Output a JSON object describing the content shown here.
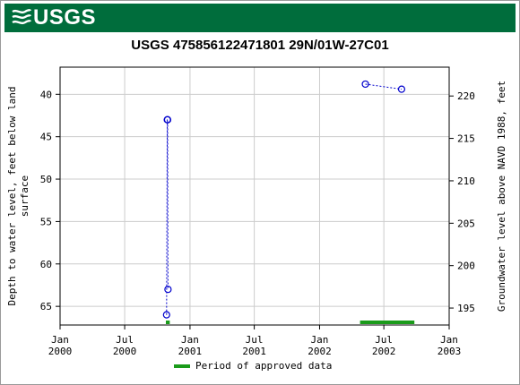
{
  "header": {
    "logo_text": "USGS",
    "logo_icon": "usgs-wave-icon",
    "background": "#006d3c"
  },
  "chart_data": {
    "type": "scatter",
    "title": "USGS 475856122471801 29N/01W-27C01",
    "ylabel": "Depth to water level, feet below land surface",
    "ylabel_lines": [
      "Depth to water level, feet below land",
      "surface"
    ],
    "y2label": "Groundwater level above NAVD 1988, feet",
    "xlim": [
      "2000-01-01",
      "2003-01-01"
    ],
    "ylim": [
      67.2,
      36.8
    ],
    "y_reversed": true,
    "y_ticks": [
      40,
      45,
      50,
      55,
      60,
      65
    ],
    "y2_ticks": [
      195,
      200,
      205,
      210,
      215,
      220
    ],
    "x_ticks": [
      {
        "date": "2000-01-01",
        "line1": "Jan",
        "line2": "2000"
      },
      {
        "date": "2000-07-01",
        "line1": "Jul",
        "line2": "2000"
      },
      {
        "date": "2001-01-01",
        "line1": "Jan",
        "line2": "2001"
      },
      {
        "date": "2001-07-01",
        "line1": "Jul",
        "line2": "2001"
      },
      {
        "date": "2002-01-01",
        "line1": "Jan",
        "line2": "2002"
      },
      {
        "date": "2002-07-01",
        "line1": "Jul",
        "line2": "2002"
      },
      {
        "date": "2003-01-01",
        "line1": "Jan",
        "line2": "2003"
      }
    ],
    "grid": true,
    "series": [
      {
        "color": "#0000cc",
        "segments": [
          [
            {
              "x": "2000-10-27",
              "y": 66.0
            },
            {
              "x": "2000-10-29",
              "y": 43.0
            },
            {
              "x": "2000-10-30",
              "y": 43.0
            },
            {
              "x": "2000-10-31",
              "y": 63.0
            }
          ],
          [
            {
              "x": "2002-05-10",
              "y": 38.8
            },
            {
              "x": "2002-08-20",
              "y": 39.4
            }
          ]
        ]
      }
    ],
    "approved_periods": [
      {
        "start": "2000-10-25",
        "end": "2000-11-05"
      },
      {
        "start": "2002-04-25",
        "end": "2002-09-25"
      }
    ],
    "approved_color": "#1a9b1a",
    "legend": {
      "label": "Period of approved data",
      "position": "bottom"
    }
  }
}
